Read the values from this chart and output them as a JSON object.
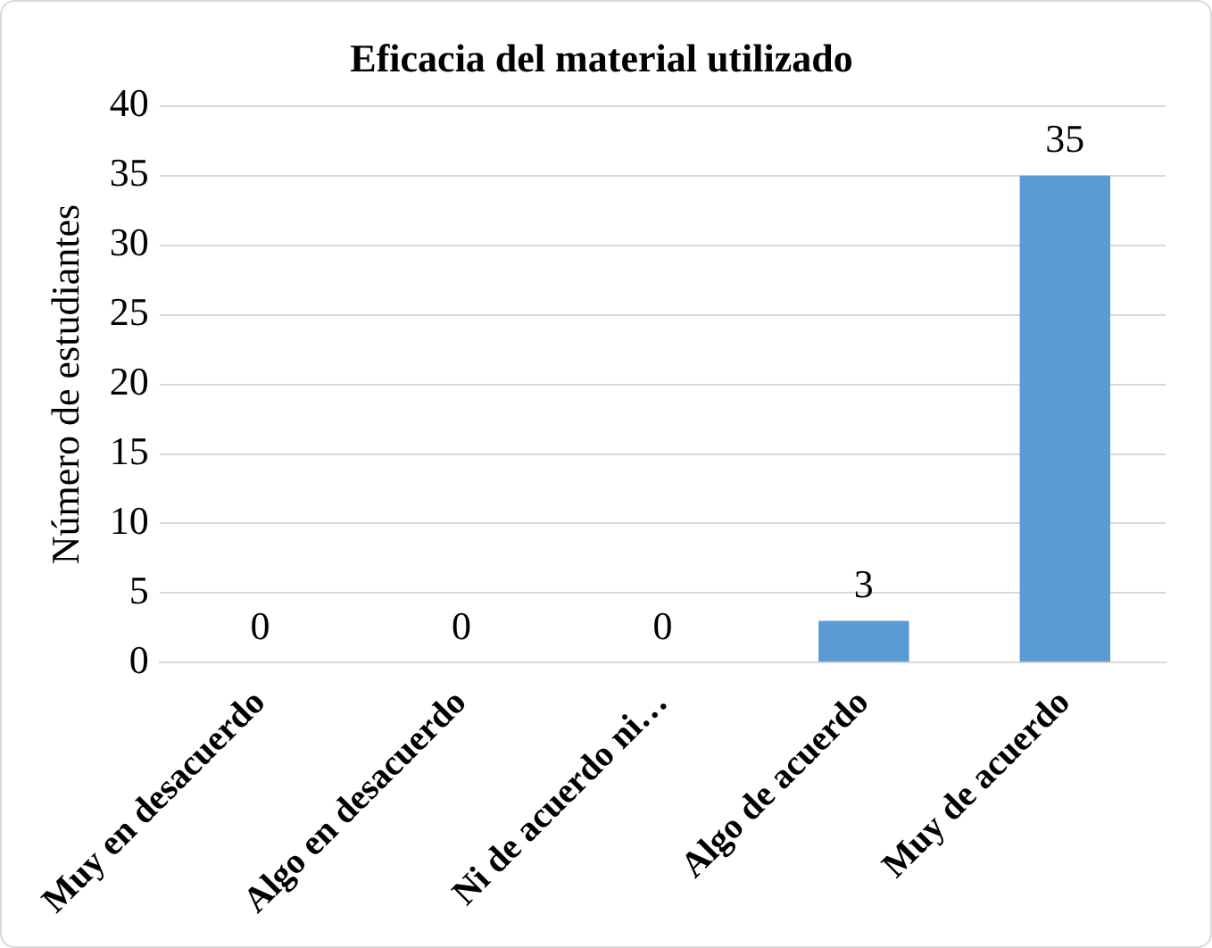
{
  "chart_data": {
    "type": "bar",
    "title": "Eficacia del material utilizado",
    "ylabel": "Número de estudiantes",
    "categories": [
      "Muy en desacuerdo",
      "Algo en desacuerdo",
      "Ni de acuerdo ni…",
      "Algo de acuerdo",
      "Muy de acuerdo"
    ],
    "values": [
      0,
      0,
      0,
      3,
      35
    ],
    "color": "#5b9bd5",
    "ylim": [
      0,
      40
    ],
    "yticks": [
      0,
      5,
      10,
      15,
      20,
      25,
      30,
      35,
      40
    ],
    "grid": "y",
    "data_labels": true,
    "legend": false
  }
}
